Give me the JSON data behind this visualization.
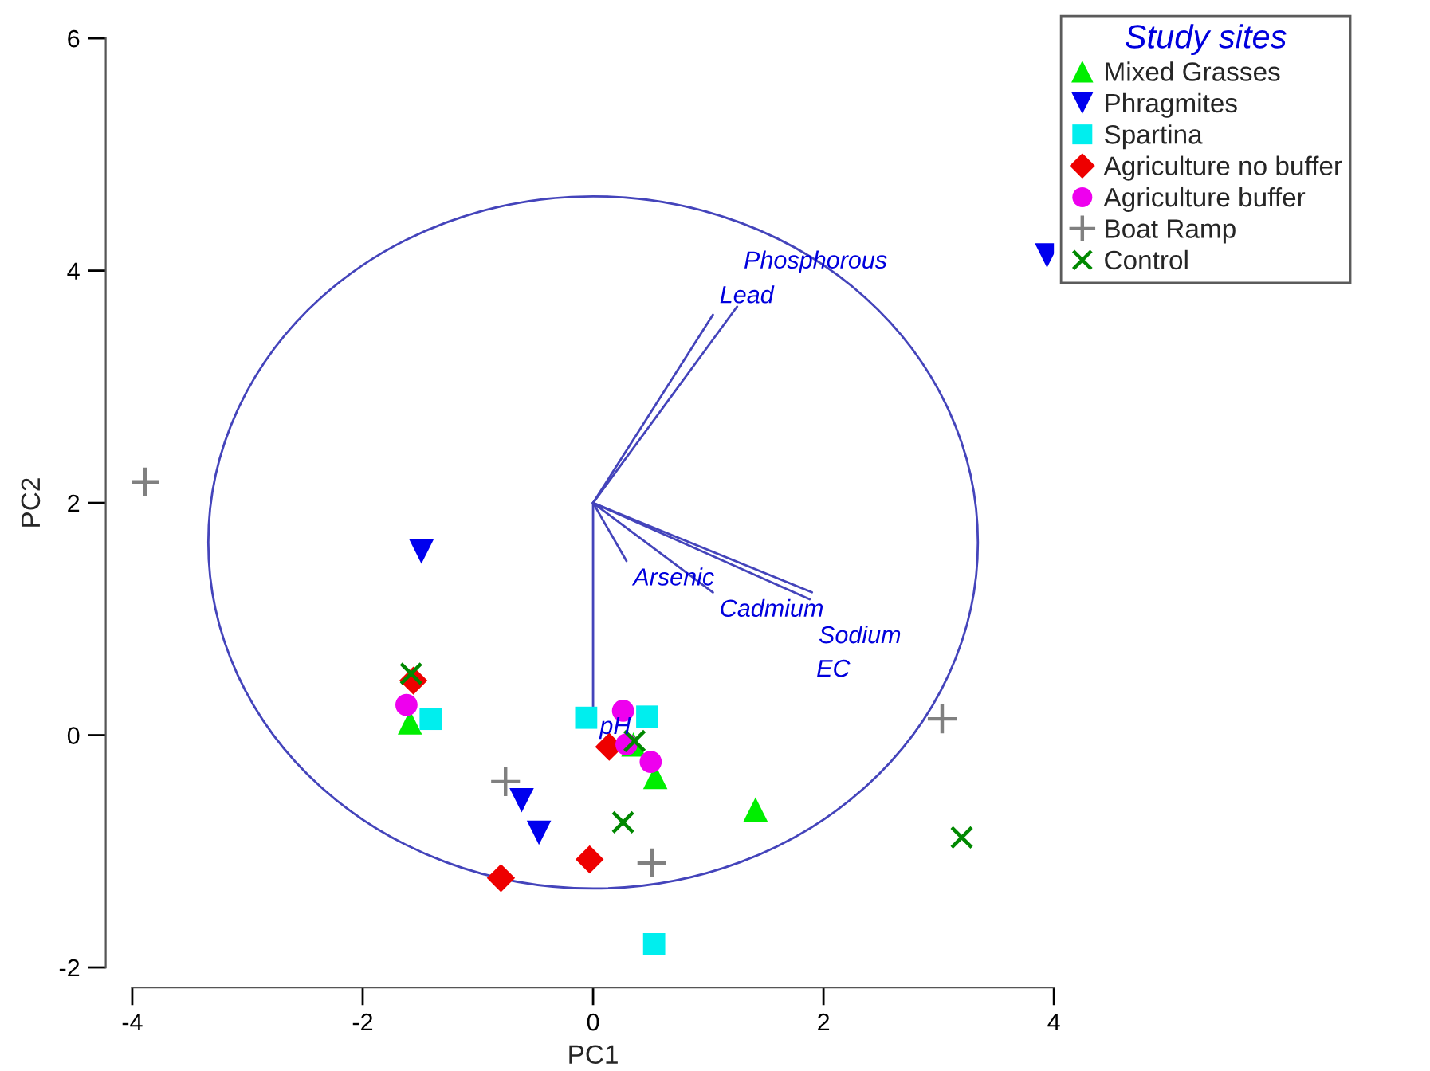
{
  "chart_data": {
    "type": "scatter",
    "xlabel": "PC1",
    "ylabel": "PC2",
    "legend_title": "Study sites",
    "legend": "top right",
    "xlim": [
      -4,
      4
    ],
    "ylim": [
      -2,
      6
    ],
    "xticks": [
      -4,
      -2,
      0,
      2,
      4
    ],
    "yticks": [
      -2,
      0,
      2,
      4,
      6
    ],
    "series": [
      {
        "name": "Mixed Grasses",
        "marker": "triangle",
        "color": "#00ee00",
        "x": [
          -1.59,
          0.35,
          0.54,
          1.41
        ],
        "values": [
          0.11,
          -0.08,
          -0.36,
          -0.64
        ]
      },
      {
        "name": "Phragmites",
        "marker": "triangle_down",
        "color": "#0000ee",
        "x": [
          -1.49,
          -0.62,
          -0.47,
          3.94
        ],
        "values": [
          1.58,
          -0.56,
          -0.84,
          4.13
        ]
      },
      {
        "name": "Spartina",
        "marker": "square",
        "color": "#00eeee",
        "x": [
          -1.41,
          -0.06,
          0.47,
          0.53
        ],
        "values": [
          0.14,
          0.15,
          0.16,
          -1.8
        ]
      },
      {
        "name": "Agriculture no buffer",
        "marker": "diamond",
        "color": "#ee0000",
        "x": [
          -1.56,
          0.14,
          -0.03,
          -0.8
        ],
        "values": [
          0.47,
          -0.1,
          -1.07,
          -1.23
        ]
      },
      {
        "name": "Agriculture buffer",
        "marker": "circle",
        "color": "#ee00ee",
        "x": [
          -1.62,
          0.26,
          0.29,
          0.5
        ],
        "values": [
          0.26,
          0.21,
          -0.08,
          -0.23
        ]
      },
      {
        "name": "Boat Ramp",
        "marker": "plus",
        "color": "#808080",
        "x": [
          -3.89,
          -0.76,
          0.51,
          3.03
        ],
        "values": [
          2.18,
          -0.4,
          -1.1,
          0.14
        ]
      },
      {
        "name": "Control",
        "marker": "cross",
        "color": "#008800",
        "x": [
          -1.58,
          0.36,
          0.26,
          3.2
        ],
        "values": [
          0.53,
          -0.05,
          -0.75,
          -0.88
        ]
      },
      {
        "type": "line",
        "color": "#4444bb",
        "x": [
          0,
          1.04
        ],
        "values": [
          2,
          3.62
        ]
      },
      {
        "type": "line",
        "color": "#4444bb",
        "x": [
          0,
          1.25
        ],
        "values": [
          2,
          3.69
        ]
      },
      {
        "type": "line",
        "color": "#4444bb",
        "x": [
          0,
          0.29
        ],
        "values": [
          2,
          1.5
        ]
      },
      {
        "type": "line",
        "color": "#4444bb",
        "x": [
          0,
          1.04
        ],
        "values": [
          2,
          1.23
        ]
      },
      {
        "type": "line",
        "color": "#4444bb",
        "x": [
          0,
          1.9
        ],
        "values": [
          2,
          1.23
        ]
      },
      {
        "type": "line",
        "color": "#4444bb",
        "x": [
          0,
          1.88
        ],
        "values": [
          2,
          1.17
        ]
      },
      {
        "type": "line",
        "color": "#4444bb",
        "x": [
          0,
          0
        ],
        "values": [
          2,
          0.22
        ]
      }
    ],
    "annotations": [
      {
        "text": "Lead",
        "x": 1.04,
        "y": 3.62
      },
      {
        "text": "Phosphorous",
        "x": 1.25,
        "y": 3.69
      },
      {
        "text": "Arsenic",
        "x": 0.29,
        "y": 1.5
      },
      {
        "text": "Cadmium",
        "x": 1.04,
        "y": 1.23
      },
      {
        "text": "Sodium",
        "x": 1.9,
        "y": 1.23
      },
      {
        "text": "EC",
        "x": 1.88,
        "y": 1.17
      },
      {
        "text": "pH",
        "x": 0,
        "y": 0.22
      }
    ]
  }
}
